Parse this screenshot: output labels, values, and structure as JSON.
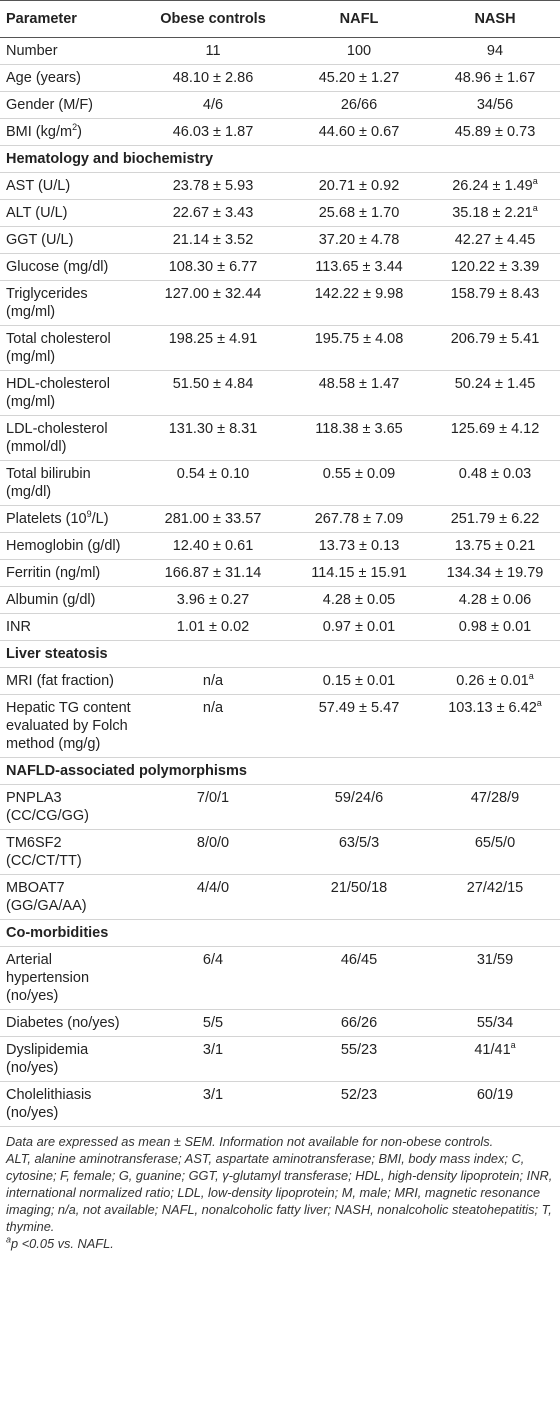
{
  "table": {
    "header": [
      "Parameter",
      "Obese controls",
      "NAFL",
      "NASH"
    ],
    "rows": [
      {
        "cells": [
          "Number",
          "11",
          "100",
          "94"
        ]
      },
      {
        "cells": [
          "Age (years)",
          "48.10 ± 2.86",
          "45.20 ± 1.27",
          "48.96 ± 1.67"
        ]
      },
      {
        "cells": [
          "Gender (M/F)",
          "4/6",
          "26/66",
          "34/56"
        ]
      },
      {
        "cells": [
          {
            "text": "BMI (kg/m",
            "sup": "2",
            "after": ")"
          },
          "46.03 ± 1.87",
          "44.60 ± 0.67",
          "45.89 ± 0.73"
        ]
      },
      {
        "section": "Hematology and biochemistry"
      },
      {
        "cells": [
          "AST (U/L)",
          "23.78 ± 5.93",
          "20.71 ± 0.92",
          {
            "text": "26.24 ± 1.49",
            "sup": "a"
          }
        ]
      },
      {
        "cells": [
          "ALT (U/L)",
          "22.67 ± 3.43",
          "25.68 ± 1.70",
          {
            "text": "35.18 ± 2.21",
            "sup": "a"
          }
        ]
      },
      {
        "cells": [
          "GGT (U/L)",
          "21.14 ± 3.52",
          "37.20 ± 4.78",
          "42.27 ± 4.45"
        ]
      },
      {
        "cells": [
          "Glucose (mg/dl)",
          "108.30 ± 6.77",
          "113.65 ± 3.44",
          "120.22 ± 3.39"
        ]
      },
      {
        "cells": [
          "Triglycerides (mg/ml)",
          "127.00 ± 32.44",
          "142.22 ± 9.98",
          "158.79 ± 8.43"
        ]
      },
      {
        "cells": [
          "Total cholesterol (mg/ml)",
          "198.25 ± 4.91",
          "195.75 ± 4.08",
          "206.79 ± 5.41"
        ]
      },
      {
        "cells": [
          "HDL-cholesterol (mg/ml)",
          "51.50 ± 4.84",
          "48.58 ± 1.47",
          "50.24 ± 1.45"
        ]
      },
      {
        "cells": [
          "LDL-cholesterol (mmol/dl)",
          "131.30 ± 8.31",
          "118.38 ± 3.65",
          "125.69 ± 4.12"
        ]
      },
      {
        "cells": [
          "Total bilirubin (mg/dl)",
          "0.54 ± 0.10",
          "0.55 ± 0.09",
          "0.48 ± 0.03"
        ]
      },
      {
        "cells": [
          {
            "text": "Platelets (10",
            "sup": "9",
            "after": "/L)"
          },
          "281.00 ± 33.57",
          "267.78 ± 7.09",
          "251.79 ± 6.22"
        ]
      },
      {
        "cells": [
          "Hemoglobin (g/dl)",
          "12.40 ± 0.61",
          "13.73 ± 0.13",
          "13.75 ± 0.21"
        ]
      },
      {
        "cells": [
          "Ferritin (ng/ml)",
          "166.87 ± 31.14",
          "114.15 ± 15.91",
          "134.34 ± 19.79"
        ]
      },
      {
        "cells": [
          "Albumin (g/dl)",
          "3.96 ± 0.27",
          "4.28 ± 0.05",
          "4.28 ± 0.06"
        ]
      },
      {
        "cells": [
          "INR",
          "1.01 ± 0.02",
          "0.97 ± 0.01",
          "0.98 ± 0.01"
        ]
      },
      {
        "section": "Liver steatosis"
      },
      {
        "cells": [
          "MRI (fat fraction)",
          "n/a",
          "0.15 ± 0.01",
          {
            "text": "0.26 ± 0.01",
            "sup": "a"
          }
        ]
      },
      {
        "cells": [
          "Hepatic TG content evaluated by Folch method (mg/g)",
          "n/a",
          "57.49 ± 5.47",
          {
            "text": "103.13 ± 6.42",
            "sup": "a"
          }
        ]
      },
      {
        "section": "NAFLD-associated polymorphisms"
      },
      {
        "cells": [
          "PNPLA3 (CC/CG/GG)",
          "7/0/1",
          "59/24/6",
          "47/28/9"
        ]
      },
      {
        "cells": [
          "TM6SF2 (CC/CT/TT)",
          "8/0/0",
          "63/5/3",
          "65/5/0"
        ]
      },
      {
        "cells": [
          "MBOAT7 (GG/GA/AA)",
          "4/4/0",
          "21/50/18",
          "27/42/15"
        ]
      },
      {
        "section": "Co-morbidities"
      },
      {
        "cells": [
          "Arterial hypertension (no/yes)",
          "6/4",
          "46/45",
          "31/59"
        ]
      },
      {
        "cells": [
          "Diabetes (no/yes)",
          "5/5",
          "66/26",
          "55/34"
        ]
      },
      {
        "cells": [
          "Dyslipidemia (no/yes)",
          "3/1",
          "55/23",
          {
            "text": "41/41",
            "sup": "a"
          }
        ]
      },
      {
        "cells": [
          "Cholelithiasis (no/yes)",
          "3/1",
          "52/23",
          "60/19"
        ]
      }
    ],
    "notes": [
      "Data are expressed as mean ± SEM. Information not available for non-obese controls.",
      "ALT, alanine aminotransferase; AST, aspartate aminotransferase; BMI, body mass index; C, cytosine; F, female; G, guanine; GGT, γ-glutamyl transferase; HDL, high-density lipoprotein; INR, international normalized ratio; LDL, low-density lipoprotein; M, male; MRI, magnetic resonance imaging; n/a, not available; NAFL, nonalcoholic fatty liver; NASH, nonalcoholic steatohepatitis; T, thymine."
    ],
    "footnote": {
      "sup": "a",
      "text": "p <0.05 vs. NAFL."
    }
  }
}
